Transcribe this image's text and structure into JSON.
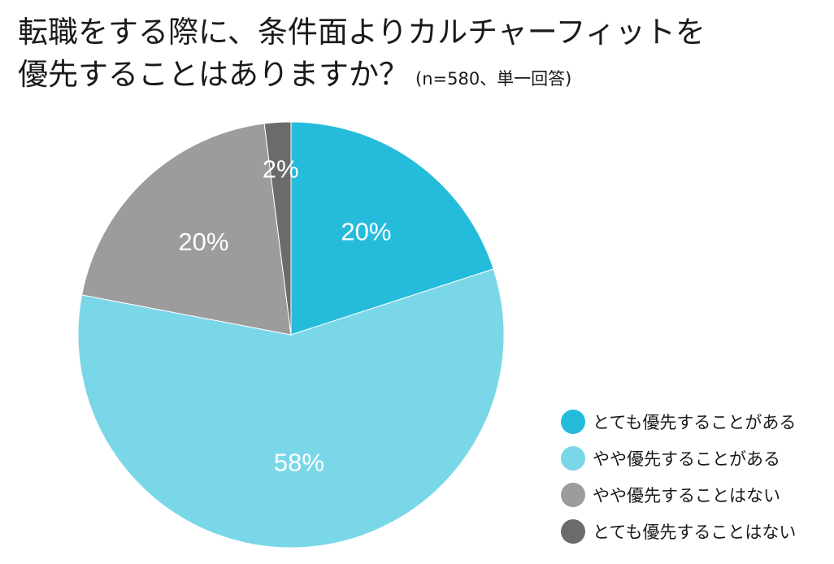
{
  "header": {
    "title_line1": "転職をする際に、条件面よりカルチャーフィットを",
    "title_line2": "優先することはありますか？",
    "note": "(n=580、単一回答)"
  },
  "chart_data": {
    "type": "pie",
    "title": "転職をする際に、条件面よりカルチャーフィットを優先することはありますか？",
    "subtitle": "(n=580、単一回答)",
    "categories": [
      "とても優先することがある",
      "やや優先することがある",
      "やや優先することはない",
      "とても優先することはない"
    ],
    "values": [
      20,
      58,
      20,
      2
    ],
    "labels": [
      "20%",
      "58%",
      "20%",
      "2%"
    ],
    "colors": [
      "#25bcdc",
      "#7ad7e8",
      "#9c9c9c",
      "#6b6b6b"
    ],
    "start": "12 o'clock",
    "direction": "clockwise",
    "legend_position": "bottom-right"
  }
}
